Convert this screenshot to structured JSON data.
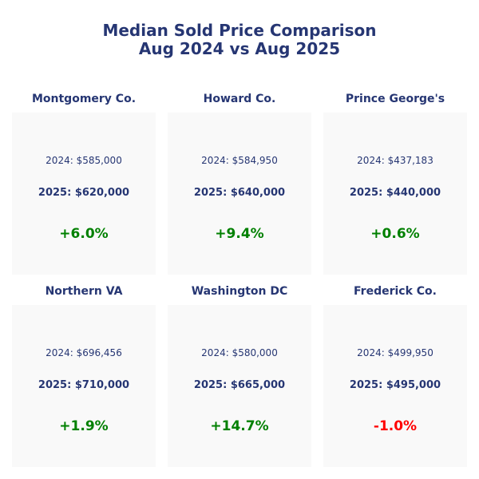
{
  "chart_data": {
    "type": "table",
    "title": "Median Sold Price Comparison",
    "subtitle": "Aug 2024 vs Aug 2025",
    "colors": {
      "title": "#263673",
      "positive": "#008000",
      "negative": "#ff0000",
      "card_bg": "#f9f9f9"
    },
    "panels": [
      {
        "region": "Montgomery Co.",
        "y2024": 585000,
        "y2025": 620000,
        "change_pct": 6.0,
        "label_2024": "2024: $585,000",
        "label_2025": "2025: $620,000",
        "change_label": "+6.0%"
      },
      {
        "region": "Howard Co.",
        "y2024": 584950,
        "y2025": 640000,
        "change_pct": 9.4,
        "label_2024": "2024: $584,950",
        "label_2025": "2025: $640,000",
        "change_label": "+9.4%"
      },
      {
        "region": "Prince George's",
        "y2024": 437183,
        "y2025": 440000,
        "change_pct": 0.6,
        "label_2024": "2024: $437,183",
        "label_2025": "2025: $440,000",
        "change_label": "+0.6%"
      },
      {
        "region": "Northern VA",
        "y2024": 696456,
        "y2025": 710000,
        "change_pct": 1.9,
        "label_2024": "2024: $696,456",
        "label_2025": "2025: $710,000",
        "change_label": "+1.9%"
      },
      {
        "region": "Washington DC",
        "y2024": 580000,
        "y2025": 665000,
        "change_pct": 14.7,
        "label_2024": "2024: $580,000",
        "label_2025": "2025: $665,000",
        "change_label": "+14.7%"
      },
      {
        "region": "Frederick Co.",
        "y2024": 499950,
        "y2025": 495000,
        "change_pct": -1.0,
        "label_2024": "2024: $499,950",
        "label_2025": "2025: $495,000",
        "change_label": "-1.0%"
      }
    ]
  }
}
